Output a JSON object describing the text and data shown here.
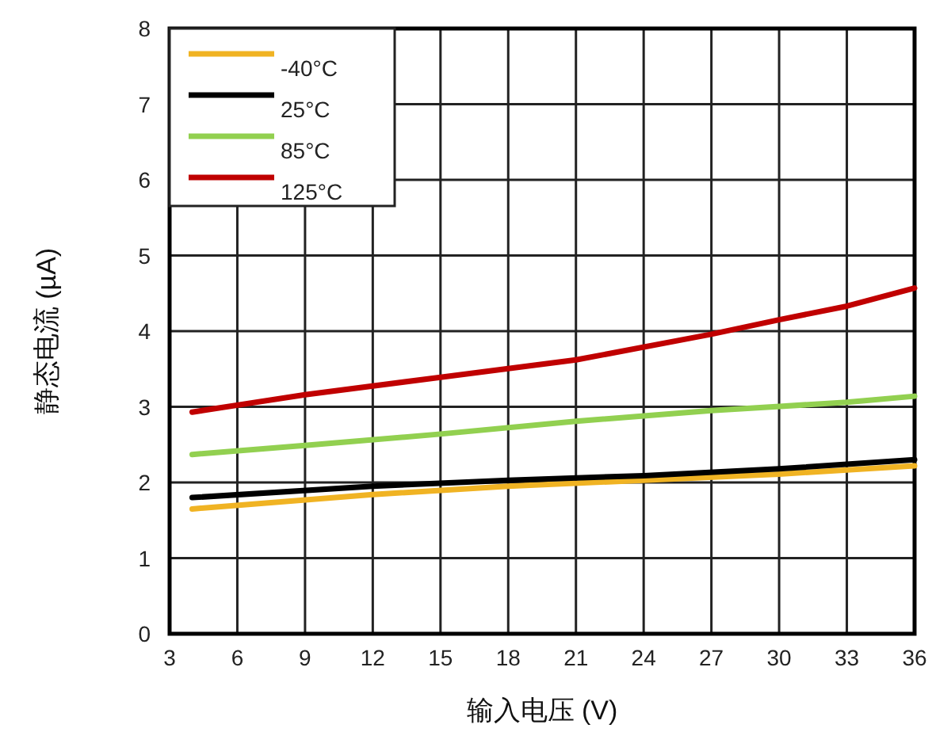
{
  "chart_data": {
    "type": "line",
    "xlabel": "输入电压 (V)",
    "ylabel": "静态电流 (µA)",
    "xlim": [
      3,
      36
    ],
    "xticks": [
      3,
      6,
      9,
      12,
      15,
      18,
      21,
      24,
      27,
      30,
      33,
      36
    ],
    "ylim": [
      0,
      8
    ],
    "yticks": [
      0,
      1,
      2,
      3,
      4,
      5,
      6,
      7,
      8
    ],
    "grid": true,
    "legend": "top left",
    "marker": "none",
    "line_style": "solid",
    "series": [
      {
        "name": "-40°C",
        "color": "#f0b323",
        "x": [
          4,
          12,
          18,
          24,
          30,
          36
        ],
        "values": [
          1.65,
          1.84,
          1.95,
          2.03,
          2.11,
          2.22
        ]
      },
      {
        "name": "25°C",
        "color": "#000000",
        "x": [
          4,
          12,
          18,
          24,
          30,
          36
        ],
        "values": [
          1.8,
          1.95,
          2.03,
          2.09,
          2.18,
          2.3
        ]
      },
      {
        "name": "85°C",
        "color": "#92d050",
        "x": [
          4,
          9,
          15,
          21,
          27,
          33,
          36
        ],
        "values": [
          2.37,
          2.49,
          2.64,
          2.81,
          2.95,
          3.06,
          3.14
        ]
      },
      {
        "name": "125°C",
        "color": "#c00000",
        "x": [
          4,
          9,
          15,
          21,
          27,
          30,
          33,
          36
        ],
        "values": [
          2.93,
          3.16,
          3.39,
          3.62,
          3.96,
          4.15,
          4.33,
          4.57
        ]
      }
    ]
  }
}
